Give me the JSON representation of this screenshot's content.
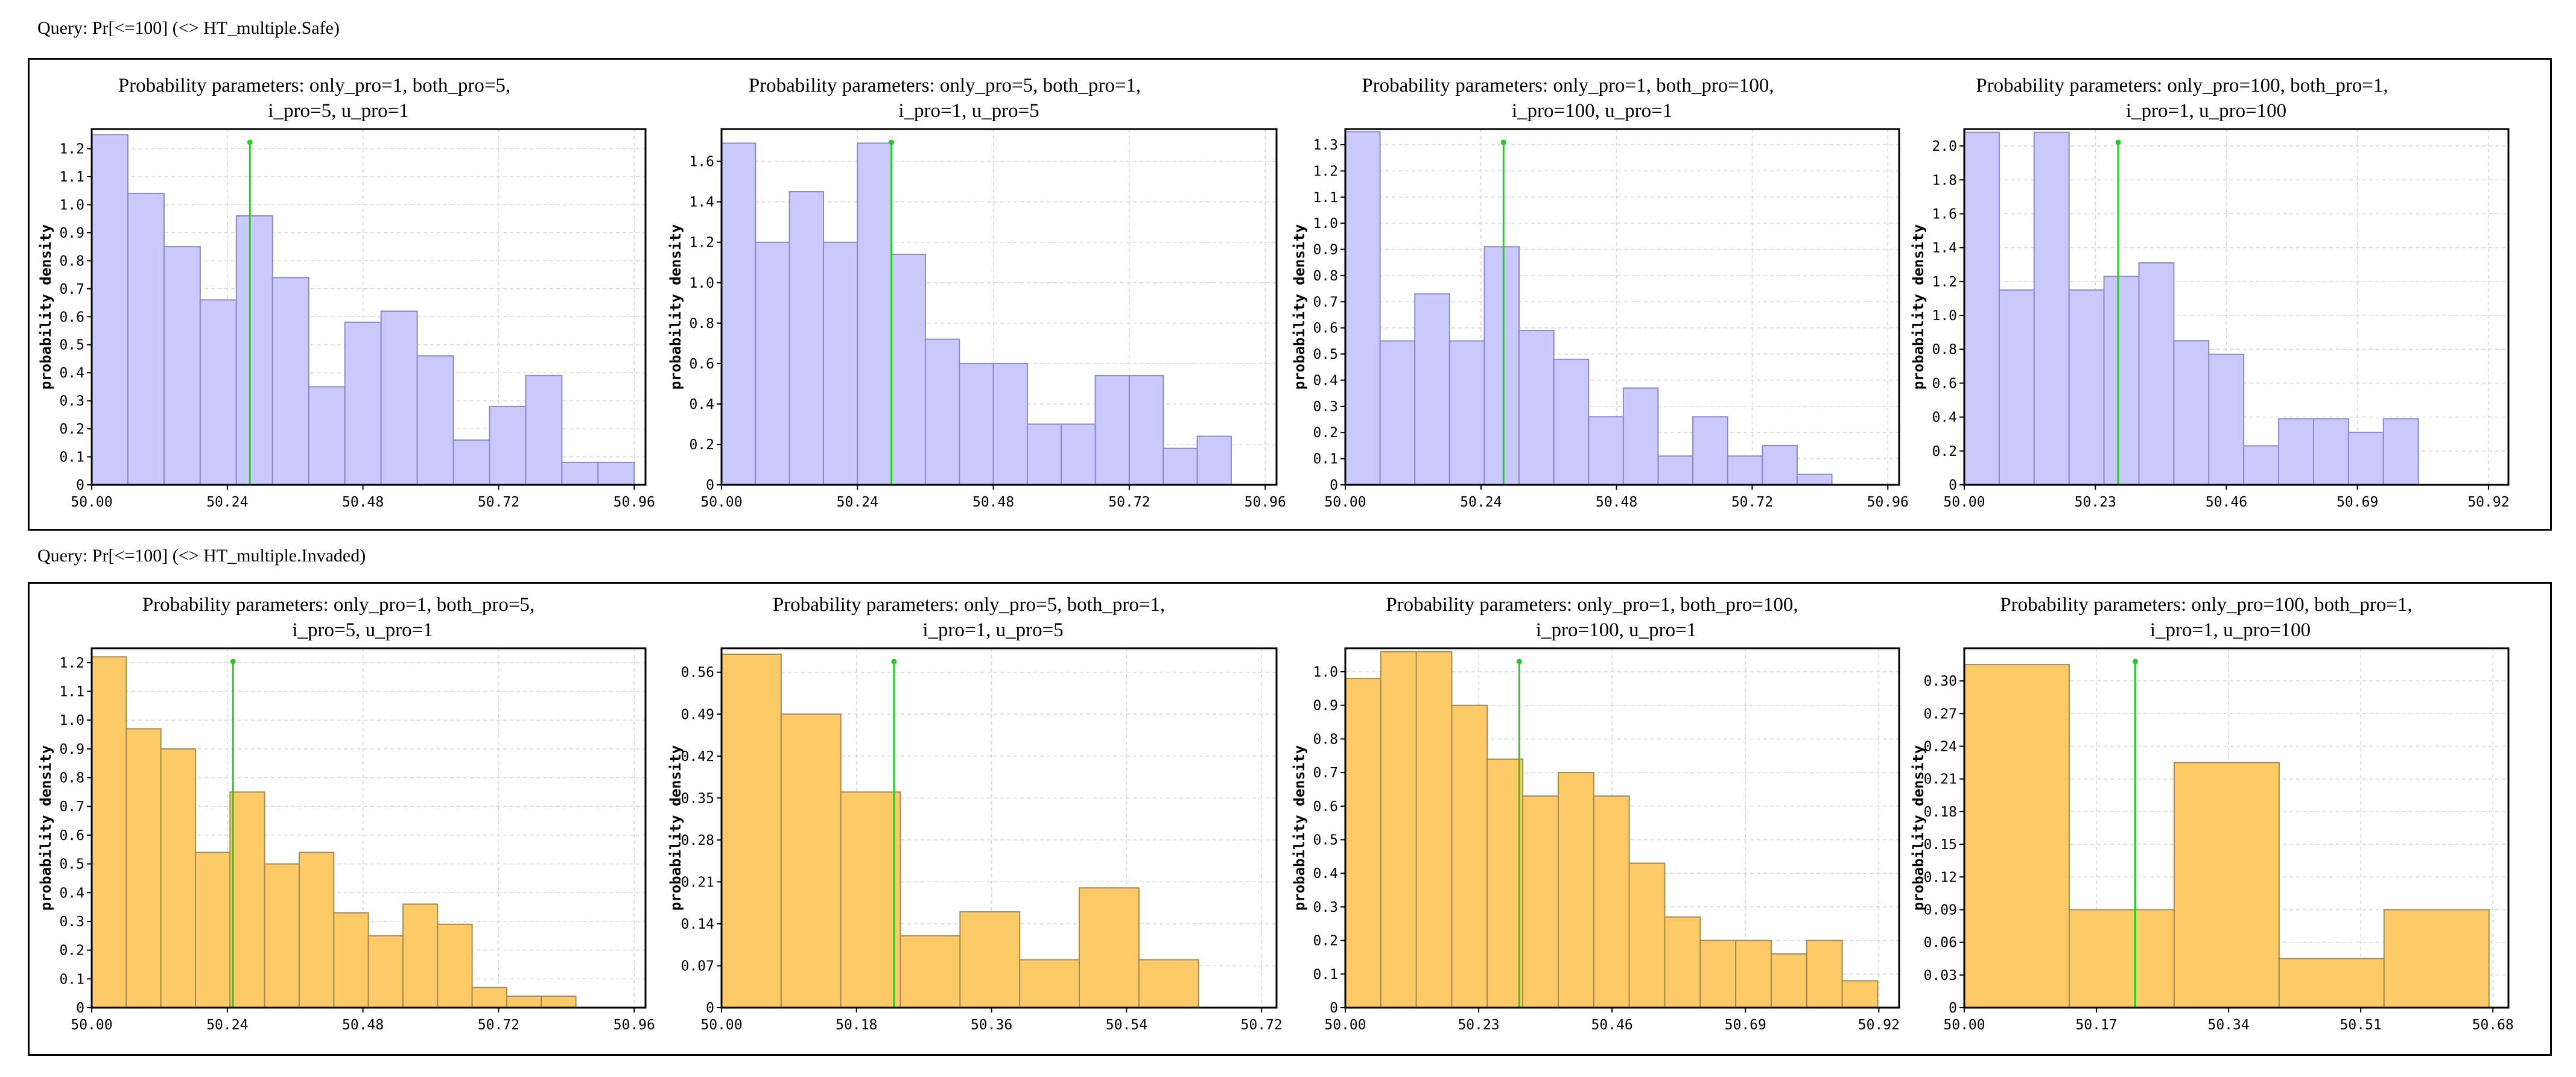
{
  "queries": [
    "Query: Pr[<=100] (<> HT_multiple.Safe)",
    "Query: Pr[<=100] (<> HT_multiple.Invaded)"
  ],
  "colors": {
    "safe_fill": "#c9c9fb",
    "safe_stroke": "#8a8ac8",
    "invaded_fill": "#fccb68",
    "invaded_stroke": "#a68a4e",
    "mean_line": "#22cc22",
    "grid": "#d6d6d6"
  },
  "chart_data": [
    {
      "type": "bar",
      "group": 0,
      "title": [
        "Probability parameters: only_pro=1, both_pro=5,",
        "i_pro=5, u_pro=1"
      ],
      "ylabel": "probability density",
      "xlim": [
        50.0,
        50.98
      ],
      "ylim": [
        0,
        1.27
      ],
      "xticks": [
        50.0,
        50.24,
        50.48,
        50.72,
        50.96
      ],
      "xtick_labels": [
        "50.00",
        "50.24",
        "50.48",
        "50.72",
        "50.96"
      ],
      "yticks": [
        0,
        0.1,
        0.2,
        0.3,
        0.4,
        0.5,
        0.6,
        0.7,
        0.8,
        0.9,
        1.0,
        1.1,
        1.2
      ],
      "ytick_labels": [
        "0",
        "0.1",
        "0.2",
        "0.3",
        "0.4",
        "0.5",
        "0.6",
        "0.7",
        "0.8",
        "0.9",
        "1.0",
        "1.1",
        "1.2"
      ],
      "bin_start": 50.0,
      "bin_width": 0.064,
      "values": [
        1.25,
        1.04,
        0.85,
        0.66,
        0.96,
        0.74,
        0.35,
        0.58,
        0.62,
        0.46,
        0.16,
        0.28,
        0.39,
        0.08,
        0.08
      ],
      "mean": 50.28
    },
    {
      "type": "bar",
      "group": 0,
      "title": [
        "Probability parameters: only_pro=5, both_pro=1,",
        "i_pro=1, u_pro=5"
      ],
      "ylabel": "probability density",
      "xlim": [
        50.0,
        50.98
      ],
      "ylim": [
        0,
        1.76
      ],
      "xticks": [
        50.0,
        50.24,
        50.48,
        50.72,
        50.96
      ],
      "xtick_labels": [
        "50.00",
        "50.24",
        "50.48",
        "50.72",
        "50.96"
      ],
      "yticks": [
        0,
        0.2,
        0.4,
        0.6,
        0.8,
        1.0,
        1.2,
        1.4,
        1.6
      ],
      "ytick_labels": [
        "0",
        "0.2",
        "0.4",
        "0.6",
        "0.8",
        "1.0",
        "1.2",
        "1.4",
        "1.6"
      ],
      "bin_start": 50.0,
      "bin_width": 0.06,
      "values": [
        1.69,
        1.2,
        1.45,
        1.2,
        1.69,
        1.14,
        0.72,
        0.6,
        0.6,
        0.3,
        0.3,
        0.54,
        0.54,
        0.18,
        0.24
      ],
      "mean": 50.3
    },
    {
      "type": "bar",
      "group": 0,
      "title": [
        "Probability parameters: only_pro=1, both_pro=100,",
        "i_pro=100, u_pro=1"
      ],
      "ylabel": "probability density",
      "xlim": [
        50.0,
        50.98
      ],
      "ylim": [
        0,
        1.36
      ],
      "xticks": [
        50.0,
        50.24,
        50.48,
        50.72,
        50.96
      ],
      "xtick_labels": [
        "50.00",
        "50.24",
        "50.48",
        "50.72",
        "50.96"
      ],
      "yticks": [
        0,
        0.1,
        0.2,
        0.3,
        0.4,
        0.5,
        0.6,
        0.7,
        0.8,
        0.9,
        1.0,
        1.1,
        1.2,
        1.3
      ],
      "ytick_labels": [
        "0",
        "0.1",
        "0.2",
        "0.3",
        "0.4",
        "0.5",
        "0.6",
        "0.7",
        "0.8",
        "0.9",
        "1.0",
        "1.1",
        "1.2",
        "1.3"
      ],
      "bin_start": 50.0,
      "bin_width": 0.0615,
      "values": [
        1.35,
        0.55,
        0.73,
        0.55,
        0.91,
        0.59,
        0.48,
        0.26,
        0.37,
        0.11,
        0.26,
        0.11,
        0.15,
        0.04
      ],
      "mean": 50.28
    },
    {
      "type": "bar",
      "group": 0,
      "title": [
        "Probability parameters: only_pro=100, both_pro=1,",
        "i_pro=1, u_pro=100"
      ],
      "ylabel": "probability density",
      "xlim": [
        50.0,
        50.955
      ],
      "ylim": [
        0,
        2.1
      ],
      "xticks": [
        50.0,
        50.23,
        50.46,
        50.69,
        50.92
      ],
      "xtick_labels": [
        "50.00",
        "50.23",
        "50.46",
        "50.69",
        "50.92"
      ],
      "yticks": [
        0,
        0.2,
        0.4,
        0.6,
        0.8,
        1.0,
        1.2,
        1.4,
        1.6,
        1.8,
        2.0
      ],
      "ytick_labels": [
        "0",
        "0.2",
        "0.4",
        "0.6",
        "0.8",
        "1.0",
        "1.2",
        "1.4",
        "1.6",
        "1.8",
        "2.0"
      ],
      "bin_start": 50.0,
      "bin_width": 0.0613,
      "values": [
        2.08,
        1.15,
        2.08,
        1.15,
        1.23,
        1.31,
        0.85,
        0.77,
        0.23,
        0.39,
        0.39,
        0.31,
        0.39
      ],
      "mean": 50.27
    },
    {
      "type": "bar",
      "group": 1,
      "title": [
        "Probability parameters: only_pro=1, both_pro=5,",
        "i_pro=5, u_pro=1"
      ],
      "ylabel": "probability density",
      "xlim": [
        50.0,
        50.98
      ],
      "ylim": [
        0,
        1.25
      ],
      "xticks": [
        50.0,
        50.24,
        50.48,
        50.72,
        50.96
      ],
      "xtick_labels": [
        "50.00",
        "50.24",
        "50.48",
        "50.72",
        "50.96"
      ],
      "yticks": [
        0,
        0.1,
        0.2,
        0.3,
        0.4,
        0.5,
        0.6,
        0.7,
        0.8,
        0.9,
        1.0,
        1.1,
        1.2
      ],
      "ytick_labels": [
        "0",
        "0.1",
        "0.2",
        "0.3",
        "0.4",
        "0.5",
        "0.6",
        "0.7",
        "0.8",
        "0.9",
        "1.0",
        "1.1",
        "1.2"
      ],
      "bin_start": 50.0,
      "bin_width": 0.0612,
      "values": [
        1.22,
        0.97,
        0.9,
        0.54,
        0.75,
        0.5,
        0.54,
        0.33,
        0.25,
        0.36,
        0.29,
        0.07,
        0.04,
        0.04
      ],
      "mean": 50.25
    },
    {
      "type": "bar",
      "group": 1,
      "title": [
        "Probability parameters: only_pro=5, both_pro=1,",
        "i_pro=1, u_pro=5"
      ],
      "ylabel": "probability density",
      "xlim": [
        50.0,
        50.74
      ],
      "ylim": [
        0,
        0.6
      ],
      "xticks": [
        50.0,
        50.18,
        50.36,
        50.54,
        50.72
      ],
      "xtick_labels": [
        "50.00",
        "50.18",
        "50.36",
        "50.54",
        "50.72"
      ],
      "yticks": [
        0,
        0.07,
        0.14,
        0.21,
        0.28,
        0.35,
        0.42,
        0.49,
        0.56
      ],
      "ytick_labels": [
        "0",
        "0.07",
        "0.14",
        "0.21",
        "0.28",
        "0.35",
        "0.42",
        "0.49",
        "0.56"
      ],
      "bin_start": 50.0,
      "bin_width": 0.0795,
      "values": [
        0.59,
        0.49,
        0.36,
        0.12,
        0.16,
        0.08,
        0.2,
        0.08
      ],
      "mean": 50.23
    },
    {
      "type": "bar",
      "group": 1,
      "title": [
        "Probability parameters: only_pro=1, both_pro=100,",
        "i_pro=100, u_pro=1"
      ],
      "ylabel": "probability density",
      "xlim": [
        50.0,
        50.955
      ],
      "ylim": [
        0,
        1.07
      ],
      "xticks": [
        50.0,
        50.23,
        50.46,
        50.69,
        50.92
      ],
      "xtick_labels": [
        "50.00",
        "50.23",
        "50.46",
        "50.69",
        "50.92"
      ],
      "yticks": [
        0,
        0.1,
        0.2,
        0.3,
        0.4,
        0.5,
        0.6,
        0.7,
        0.8,
        0.9,
        1.0
      ],
      "ytick_labels": [
        "0",
        "0.1",
        "0.2",
        "0.3",
        "0.4",
        "0.5",
        "0.6",
        "0.7",
        "0.8",
        "0.9",
        "1.0"
      ],
      "bin_start": 50.0,
      "bin_width": 0.0612,
      "values": [
        0.98,
        1.06,
        1.06,
        0.9,
        0.74,
        0.63,
        0.7,
        0.63,
        0.43,
        0.27,
        0.2,
        0.2,
        0.16,
        0.2,
        0.08
      ],
      "mean": 50.3
    },
    {
      "type": "bar",
      "group": 1,
      "title": [
        "Probability parameters: only_pro=100, both_pro=1,",
        "i_pro=1, u_pro=100"
      ],
      "ylabel": "probability density",
      "xlim": [
        50.0,
        50.7
      ],
      "ylim": [
        0,
        0.33
      ],
      "xticks": [
        50.0,
        50.17,
        50.34,
        50.51,
        50.68
      ],
      "xtick_labels": [
        "50.00",
        "50.17",
        "50.34",
        "50.51",
        "50.68"
      ],
      "yticks": [
        0,
        0.03,
        0.06,
        0.09,
        0.12,
        0.15,
        0.18,
        0.21,
        0.24,
        0.27,
        0.3
      ],
      "ytick_labels": [
        "0",
        "0.03",
        "0.06",
        "0.09",
        "0.12",
        "0.15",
        "0.18",
        "0.21",
        "0.24",
        "0.27",
        "0.30"
      ],
      "bin_start": 50.0,
      "bin_width": 0.135,
      "values": [
        0.315,
        0.09,
        0.225,
        0.045,
        0.09
      ],
      "mean": 50.22
    }
  ]
}
